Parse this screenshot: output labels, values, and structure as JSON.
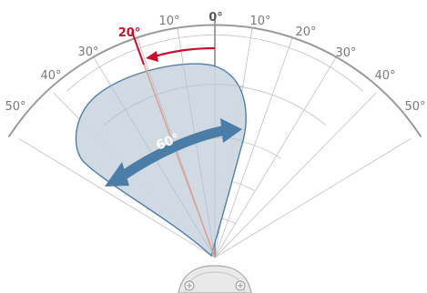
{
  "scale_labels": {
    "left_50": "50°",
    "left_40": "40°",
    "left_30": "30°",
    "left_10": "10°",
    "center": "0°",
    "right_10": "10°",
    "right_20": "20°",
    "right_30": "30°",
    "right_40": "40°",
    "right_50": "50°"
  },
  "tilt": {
    "label": "20°",
    "value_deg": 20
  },
  "beam": {
    "label": "60°",
    "width_deg": 60
  },
  "colors": {
    "grid": "#8c8c8c",
    "tilt_accent": "#c8102e",
    "beam_fill": "#cdd7e1",
    "beam_stroke": "#4f7fa6",
    "beam_arrow": "#4a7ea8",
    "axis_line": "#e0a090"
  }
}
